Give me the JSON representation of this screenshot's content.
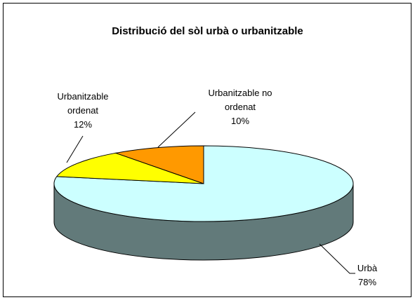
{
  "chart_data": {
    "type": "pie3d",
    "title": "Distribució del sòl urbà o urbanitzable",
    "categories": [
      "Urbà",
      "Urbanitzable ordenat",
      "Urbanitzable no ordenat"
    ],
    "values": [
      78,
      12,
      10
    ],
    "value_labels": [
      "78%",
      "12%",
      "10%"
    ],
    "colors": [
      "#ccffff",
      "#ffff00",
      "#ff9900"
    ]
  }
}
